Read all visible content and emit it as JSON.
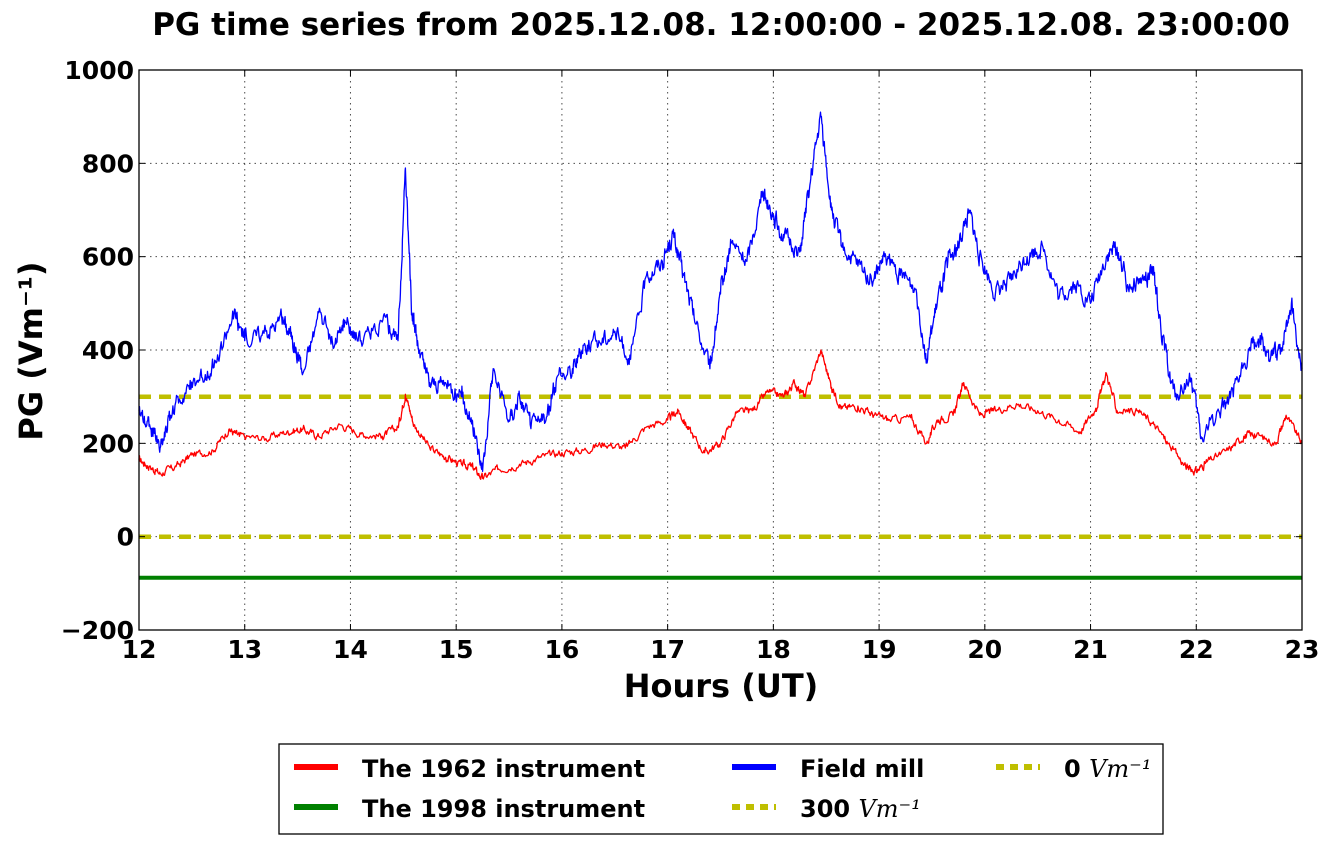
{
  "chart_data": {
    "type": "line",
    "title": "PG time series from 2025.12.08. 12:00:00 - 2025.12.08. 23:00:00",
    "xlabel": "Hours (UT)",
    "ylabel": "PG (Vm⁻¹)",
    "xlim": [
      12,
      23
    ],
    "ylim": [
      -200,
      1000
    ],
    "xticks": [
      "12",
      "13",
      "14",
      "15",
      "16",
      "17",
      "18",
      "19",
      "20",
      "21",
      "22",
      "23"
    ],
    "yticks": [
      "−200",
      "0",
      "200",
      "400",
      "600",
      "800",
      "1000"
    ],
    "grid": true,
    "legend_position": "bottom-center",
    "series": [
      {
        "name": "The 1962 instrument",
        "color": "#ff0000",
        "style": "solid",
        "x": [
          12.0,
          12.1,
          12.2,
          12.35,
          12.5,
          12.7,
          12.85,
          12.95,
          13.2,
          13.4,
          13.55,
          13.7,
          13.9,
          14.1,
          14.3,
          14.45,
          14.52,
          14.6,
          14.75,
          14.9,
          15.05,
          15.15,
          15.25,
          15.4,
          15.6,
          15.8,
          16.0,
          16.2,
          16.4,
          16.6,
          16.8,
          17.0,
          17.1,
          17.2,
          17.35,
          17.5,
          17.65,
          17.8,
          17.95,
          18.1,
          18.2,
          18.3,
          18.45,
          18.55,
          18.65,
          18.8,
          18.95,
          19.1,
          19.3,
          19.45,
          19.55,
          19.7,
          19.8,
          19.95,
          20.1,
          20.3,
          20.5,
          20.7,
          20.9,
          21.05,
          21.15,
          21.25,
          21.45,
          21.6,
          21.75,
          21.9,
          22.0,
          22.1,
          22.3,
          22.45,
          22.55,
          22.75,
          22.85,
          23.0
        ],
        "values": [
          165,
          150,
          135,
          150,
          175,
          185,
          230,
          215,
          210,
          225,
          230,
          215,
          240,
          220,
          215,
          235,
          305,
          240,
          190,
          170,
          155,
          150,
          125,
          145,
          155,
          170,
          180,
          185,
          200,
          190,
          235,
          250,
          270,
          230,
          180,
          200,
          265,
          270,
          310,
          300,
          330,
          300,
          400,
          320,
          275,
          280,
          260,
          250,
          255,
          200,
          250,
          260,
          330,
          260,
          270,
          285,
          270,
          250,
          225,
          275,
          350,
          270,
          270,
          240,
          195,
          150,
          140,
          160,
          185,
          215,
          220,
          200,
          260,
          200
        ]
      },
      {
        "name": "The 1998 instrument",
        "color": "#008000",
        "style": "solid",
        "x": [
          12.0,
          23.0
        ],
        "values": [
          -88,
          -88
        ]
      },
      {
        "name": "Field mill",
        "color": "#0000ff",
        "style": "solid",
        "x": [
          12.0,
          12.1,
          12.2,
          12.3,
          12.45,
          12.6,
          12.75,
          12.9,
          13.0,
          13.2,
          13.35,
          13.45,
          13.55,
          13.7,
          13.85,
          13.95,
          14.1,
          14.3,
          14.45,
          14.52,
          14.58,
          14.65,
          14.75,
          14.9,
          15.05,
          15.15,
          15.25,
          15.35,
          15.5,
          15.6,
          15.7,
          15.85,
          15.95,
          16.1,
          16.2,
          16.35,
          16.5,
          16.65,
          16.8,
          16.95,
          17.05,
          17.15,
          17.25,
          17.4,
          17.5,
          17.6,
          17.75,
          17.9,
          18.0,
          18.1,
          18.25,
          18.35,
          18.45,
          18.55,
          18.65,
          18.8,
          18.95,
          19.05,
          19.2,
          19.35,
          19.45,
          19.55,
          19.65,
          19.75,
          19.85,
          19.95,
          20.1,
          20.25,
          20.4,
          20.55,
          20.7,
          20.85,
          21.0,
          21.15,
          21.25,
          21.35,
          21.5,
          21.6,
          21.7,
          21.8,
          21.95,
          22.05,
          22.2,
          22.35,
          22.5,
          22.6,
          22.7,
          22.8,
          22.9,
          23.0
        ],
        "values": [
          270,
          240,
          190,
          260,
          320,
          340,
          380,
          480,
          420,
          440,
          470,
          430,
          350,
          480,
          410,
          460,
          420,
          460,
          420,
          790,
          480,
          400,
          330,
          330,
          300,
          250,
          140,
          360,
          250,
          300,
          240,
          250,
          340,
          360,
          410,
          420,
          440,
          380,
          560,
          590,
          650,
          560,
          470,
          360,
          520,
          630,
          590,
          740,
          690,
          640,
          610,
          760,
          900,
          700,
          620,
          580,
          550,
          600,
          560,
          530,
          380,
          500,
          590,
          620,
          700,
          600,
          520,
          550,
          600,
          620,
          510,
          540,
          500,
          600,
          620,
          540,
          550,
          560,
          400,
          300,
          340,
          210,
          270,
          300,
          400,
          420,
          380,
          400,
          500,
          360
        ]
      },
      {
        "name": "300 Vm⁻¹",
        "color": "#bfbf00",
        "style": "dashed",
        "x": [
          12.0,
          23.0
        ],
        "values": [
          300,
          300
        ]
      },
      {
        "name": "0 Vm⁻¹",
        "color": "#bfbf00",
        "style": "dashed",
        "x": [
          12.0,
          23.0
        ],
        "values": [
          0,
          0
        ]
      }
    ],
    "legend": {
      "items": [
        {
          "label": "The 1962 instrument",
          "text": "The 1962 instrument",
          "unit": "",
          "color": "#ff0000",
          "style": "solid"
        },
        {
          "label": "The 1998 instrument",
          "text": "The 1998 instrument",
          "unit": "",
          "color": "#008000",
          "style": "solid"
        },
        {
          "label": "Field mill",
          "text": "Field mill",
          "unit": "",
          "color": "#0000ff",
          "style": "solid"
        },
        {
          "label": "300 Vm⁻¹",
          "text": "300 ",
          "unit": "Vm⁻¹",
          "color": "#bfbf00",
          "style": "dashed"
        },
        {
          "label": "0 Vm⁻¹",
          "text": "0 ",
          "unit": "Vm⁻¹",
          "color": "#bfbf00",
          "style": "dashed"
        }
      ]
    }
  }
}
